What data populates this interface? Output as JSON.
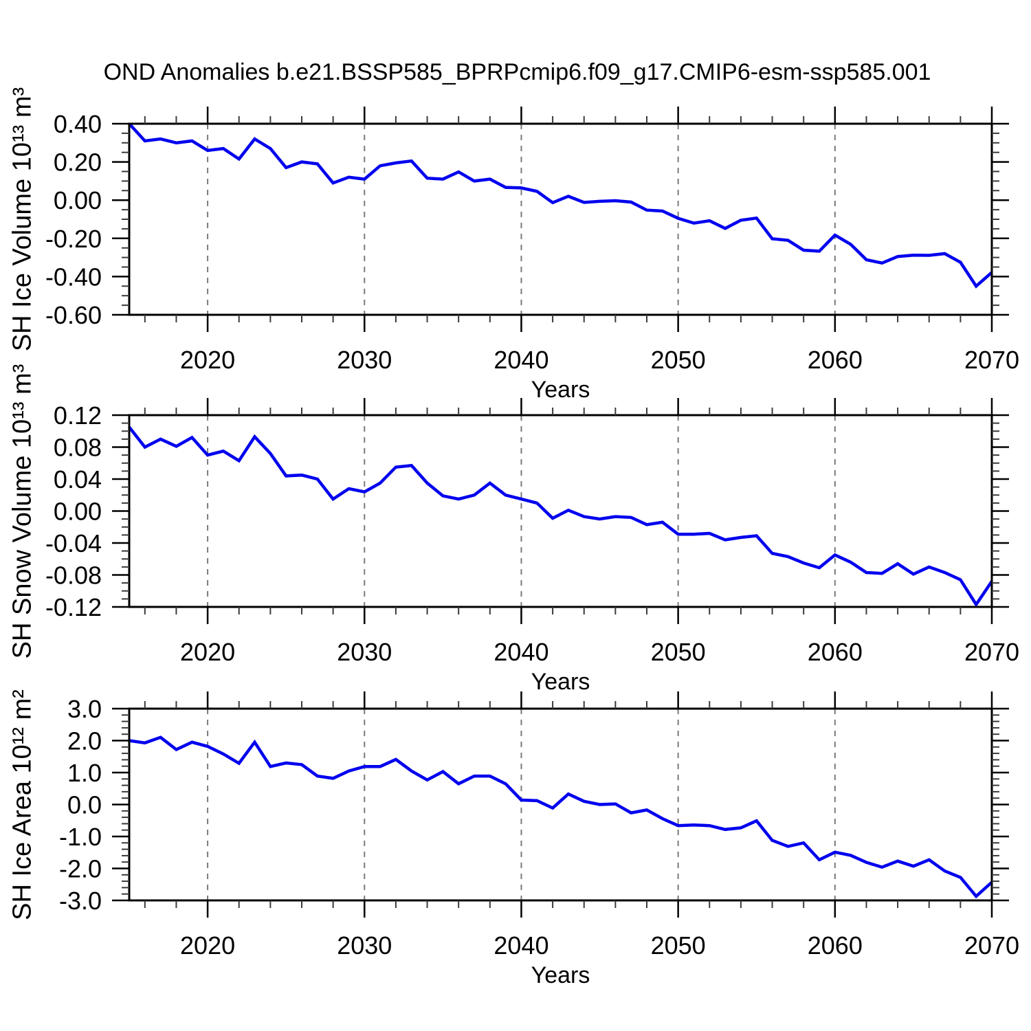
{
  "title": "OND Anomalies b.e21.BSSP585_BPRPcmip6.f09_g17.CMIP6-esm-ssp585.001",
  "colors": {
    "line": "#0000ee",
    "grid": "#7a7a7a",
    "frame": "#000000",
    "minor_tick": "#3a3a3a",
    "text": "#000000",
    "background": "#ffffff"
  },
  "years": [
    2015,
    2016,
    2017,
    2018,
    2019,
    2020,
    2021,
    2022,
    2023,
    2024,
    2025,
    2026,
    2027,
    2028,
    2029,
    2030,
    2031,
    2032,
    2033,
    2034,
    2035,
    2036,
    2037,
    2038,
    2039,
    2040,
    2041,
    2042,
    2043,
    2044,
    2045,
    2046,
    2047,
    2048,
    2049,
    2050,
    2051,
    2052,
    2053,
    2054,
    2055,
    2056,
    2057,
    2058,
    2059,
    2060,
    2061,
    2062,
    2063,
    2064,
    2065,
    2066,
    2067,
    2068,
    2069,
    2070
  ],
  "chart_data": [
    {
      "name": "sh-ice-volume",
      "type": "line",
      "ylabel": "SH Ice Volume 10¹³ m³",
      "xlabel": "Years",
      "x_range": [
        2015,
        2070
      ],
      "ylim": [
        -0.6,
        0.4
      ],
      "x_tick_years": [
        2020,
        2030,
        2040,
        2050,
        2060,
        2070
      ],
      "x_tick_labels": [
        "2020",
        "2030",
        "2040",
        "2050",
        "2060",
        "2070"
      ],
      "grid_years": [
        2020,
        2030,
        2040,
        2050,
        2060
      ],
      "x_minor_step": 2,
      "y_tick_values": [
        0.4,
        0.2,
        0.0,
        -0.2,
        -0.4,
        -0.6
      ],
      "y_tick_labels": [
        "0.40",
        "0.20",
        "0.00",
        "-0.20",
        "-0.40",
        "-0.60"
      ],
      "y_minor_step": 0.05,
      "values": [
        0.4,
        0.31,
        0.32,
        0.3,
        0.31,
        0.26,
        0.27,
        0.215,
        0.32,
        0.27,
        0.17,
        0.2,
        0.19,
        0.09,
        0.12,
        0.11,
        0.18,
        0.195,
        0.205,
        0.115,
        0.11,
        0.148,
        0.1,
        0.11,
        0.067,
        0.064,
        0.046,
        -0.013,
        0.02,
        -0.012,
        -0.006,
        -0.003,
        -0.01,
        -0.052,
        -0.057,
        -0.095,
        -0.12,
        -0.108,
        -0.148,
        -0.105,
        -0.094,
        -0.202,
        -0.21,
        -0.262,
        -0.267,
        -0.183,
        -0.231,
        -0.312,
        -0.329,
        -0.295,
        -0.288,
        -0.289,
        -0.28,
        -0.325,
        -0.45,
        -0.378
      ]
    },
    {
      "name": "sh-snow-volume",
      "type": "line",
      "ylabel": "SH Snow Volume 10¹³ m³",
      "xlabel": "Years",
      "x_range": [
        2015,
        2070
      ],
      "ylim": [
        -0.12,
        0.12
      ],
      "x_tick_years": [
        2020,
        2030,
        2040,
        2050,
        2060,
        2070
      ],
      "x_tick_labels": [
        "2020",
        "2030",
        "2040",
        "2050",
        "2060",
        "2070"
      ],
      "grid_years": [
        2020,
        2030,
        2040,
        2050,
        2060
      ],
      "x_minor_step": 2,
      "y_tick_values": [
        0.12,
        0.08,
        0.04,
        0.0,
        -0.04,
        -0.08,
        -0.12
      ],
      "y_tick_labels": [
        "0.12",
        "0.08",
        "0.04",
        "0.00",
        "-0.04",
        "-0.08",
        "-0.12"
      ],
      "y_minor_step": 0.01,
      "values": [
        0.105,
        0.08,
        0.09,
        0.081,
        0.092,
        0.07,
        0.075,
        0.063,
        0.093,
        0.072,
        0.044,
        0.045,
        0.04,
        0.015,
        0.028,
        0.024,
        0.035,
        0.055,
        0.057,
        0.035,
        0.019,
        0.015,
        0.02,
        0.035,
        0.02,
        0.015,
        0.01,
        -0.009,
        0.001,
        -0.007,
        -0.01,
        -0.007,
        -0.008,
        -0.017,
        -0.014,
        -0.029,
        -0.029,
        -0.028,
        -0.036,
        -0.033,
        -0.031,
        -0.053,
        -0.057,
        -0.065,
        -0.071,
        -0.055,
        -0.064,
        -0.077,
        -0.078,
        -0.066,
        -0.079,
        -0.07,
        -0.077,
        -0.086,
        -0.117,
        -0.088
      ]
    },
    {
      "name": "sh-ice-area",
      "type": "line",
      "ylabel": "SH Ice Area 10¹² m²",
      "xlabel": "Years",
      "x_range": [
        2015,
        2070
      ],
      "ylim": [
        -3.0,
        3.0
      ],
      "x_tick_years": [
        2020,
        2030,
        2040,
        2050,
        2060,
        2070
      ],
      "x_tick_labels": [
        "2020",
        "2030",
        "2040",
        "2050",
        "2060",
        "2070"
      ],
      "grid_years": [
        2020,
        2030,
        2040,
        2050,
        2060
      ],
      "x_minor_step": 2,
      "y_tick_values": [
        3.0,
        2.0,
        1.0,
        0.0,
        -1.0,
        -2.0,
        -3.0
      ],
      "y_tick_labels": [
        "3.0",
        "2.0",
        "1.0",
        "0.0",
        "-1.0",
        "-2.0",
        "-3.0"
      ],
      "y_minor_step": 0.2,
      "values": [
        2.0,
        1.93,
        2.1,
        1.72,
        1.95,
        1.82,
        1.58,
        1.29,
        1.95,
        1.19,
        1.3,
        1.25,
        0.89,
        0.82,
        1.05,
        1.19,
        1.19,
        1.41,
        1.05,
        0.77,
        1.03,
        0.65,
        0.89,
        0.89,
        0.65,
        0.14,
        0.12,
        -0.11,
        0.33,
        0.1,
        0.0,
        0.02,
        -0.26,
        -0.17,
        -0.44,
        -0.66,
        -0.64,
        -0.66,
        -0.78,
        -0.73,
        -0.51,
        -1.12,
        -1.31,
        -1.2,
        -1.73,
        -1.49,
        -1.59,
        -1.81,
        -1.96,
        -1.77,
        -1.93,
        -1.73,
        -2.08,
        -2.28,
        -2.87,
        -2.43
      ]
    }
  ]
}
